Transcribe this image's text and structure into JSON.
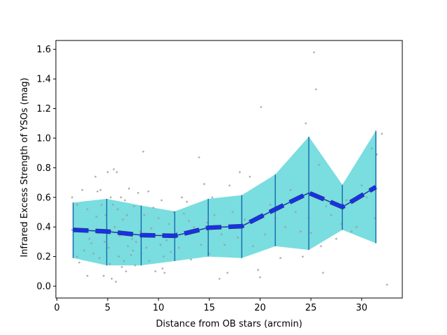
{
  "chart_data": {
    "type": "line",
    "xlabel": "Distance from OB stars (arcmin)",
    "ylabel": "Infrared Excess Strength of YSOs (mag)",
    "xlim": [
      -0.1,
      34.0
    ],
    "ylim": [
      -0.08,
      1.66
    ],
    "x_ticks": [
      0,
      5,
      10,
      15,
      20,
      25,
      30
    ],
    "y_ticks": [
      0.0,
      0.2,
      0.4,
      0.6,
      0.8,
      1.0,
      1.2,
      1.4,
      1.6
    ],
    "grid": false,
    "legend": "none",
    "colors": {
      "band": "#7adddf",
      "errorbar": "#1f77b4",
      "mean_line": "#1a2ff0",
      "mean_line_edge": "#1f3a8f",
      "scatter": "#999999"
    },
    "binned_series": {
      "x": [
        1.6,
        4.9,
        8.3,
        11.6,
        14.9,
        18.2,
        21.5,
        24.8,
        28.1,
        31.4
      ],
      "mean": [
        0.38,
        0.37,
        0.345,
        0.34,
        0.395,
        0.405,
        0.52,
        0.63,
        0.535,
        0.67
      ],
      "upper": [
        0.565,
        0.59,
        0.545,
        0.505,
        0.59,
        0.615,
        0.755,
        1.01,
        0.685,
        1.05
      ],
      "lower": [
        0.19,
        0.14,
        0.14,
        0.17,
        0.2,
        0.19,
        0.27,
        0.245,
        0.38,
        0.29
      ]
    },
    "scatter_points": [
      [
        1.5,
        0.6
      ],
      [
        1.5,
        0.38
      ],
      [
        2.0,
        0.55
      ],
      [
        2.0,
        0.2
      ],
      [
        2.2,
        0.16
      ],
      [
        2.5,
        0.65
      ],
      [
        2.7,
        0.24
      ],
      [
        3.0,
        0.52
      ],
      [
        3.0,
        0.07
      ],
      [
        3.2,
        0.32
      ],
      [
        3.4,
        0.29
      ],
      [
        3.6,
        0.22
      ],
      [
        3.8,
        0.74
      ],
      [
        3.9,
        0.47
      ],
      [
        4.0,
        0.64
      ],
      [
        4.1,
        0.36
      ],
      [
        4.2,
        0.19
      ],
      [
        4.3,
        0.65
      ],
      [
        4.4,
        0.55
      ],
      [
        4.6,
        0.07
      ],
      [
        4.7,
        0.3
      ],
      [
        4.8,
        0.48
      ],
      [
        5.0,
        0.77
      ],
      [
        5.1,
        0.26
      ],
      [
        5.2,
        0.15
      ],
      [
        5.3,
        0.6
      ],
      [
        5.4,
        0.05
      ],
      [
        5.5,
        0.55
      ],
      [
        5.6,
        0.79
      ],
      [
        5.7,
        0.4
      ],
      [
        5.8,
        0.03
      ],
      [
        5.9,
        0.77
      ],
      [
        6.0,
        0.52
      ],
      [
        6.1,
        0.2
      ],
      [
        6.2,
        0.34
      ],
      [
        6.3,
        0.6
      ],
      [
        6.4,
        0.13
      ],
      [
        6.5,
        0.45
      ],
      [
        6.6,
        0.17
      ],
      [
        6.7,
        0.58
      ],
      [
        6.8,
        0.1
      ],
      [
        6.9,
        0.48
      ],
      [
        7.0,
        0.27
      ],
      [
        7.1,
        0.66
      ],
      [
        7.2,
        0.36
      ],
      [
        7.3,
        0.21
      ],
      [
        7.4,
        0.32
      ],
      [
        7.5,
        0.24
      ],
      [
        7.6,
        0.54
      ],
      [
        7.7,
        0.14
      ],
      [
        7.8,
        0.3
      ],
      [
        8.0,
        0.63
      ],
      [
        8.2,
        0.37
      ],
      [
        8.3,
        0.22
      ],
      [
        8.5,
        0.91
      ],
      [
        8.6,
        0.48
      ],
      [
        8.8,
        0.26
      ],
      [
        9.0,
        0.64
      ],
      [
        9.1,
        0.17
      ],
      [
        9.3,
        0.39
      ],
      [
        9.5,
        0.53
      ],
      [
        9.7,
        0.1
      ],
      [
        10.0,
        0.46
      ],
      [
        10.2,
        0.28
      ],
      [
        10.3,
        0.58
      ],
      [
        10.4,
        0.12
      ],
      [
        10.5,
        0.2
      ],
      [
        10.6,
        0.09
      ],
      [
        10.8,
        0.31
      ],
      [
        11.0,
        0.42
      ],
      [
        11.2,
        0.23
      ],
      [
        11.5,
        0.5
      ],
      [
        11.8,
        0.36
      ],
      [
        12.0,
        0.26
      ],
      [
        12.3,
        0.6
      ],
      [
        12.5,
        0.49
      ],
      [
        12.8,
        0.57
      ],
      [
        13.0,
        0.44
      ],
      [
        13.2,
        0.18
      ],
      [
        13.5,
        0.4
      ],
      [
        14.0,
        0.87
      ],
      [
        14.2,
        0.28
      ],
      [
        14.5,
        0.69
      ],
      [
        14.8,
        0.43
      ],
      [
        15.0,
        0.22
      ],
      [
        15.3,
        0.6
      ],
      [
        15.5,
        0.48
      ],
      [
        16.0,
        0.05
      ],
      [
        16.2,
        0.35
      ],
      [
        16.5,
        0.28
      ],
      [
        16.8,
        0.09
      ],
      [
        17.0,
        0.68
      ],
      [
        17.3,
        0.5
      ],
      [
        17.8,
        0.33
      ],
      [
        18.0,
        0.77
      ],
      [
        18.5,
        0.45
      ],
      [
        19.0,
        0.74
      ],
      [
        19.3,
        0.27
      ],
      [
        19.8,
        0.11
      ],
      [
        20.0,
        0.06
      ],
      [
        20.1,
        1.21
      ],
      [
        20.5,
        0.35
      ],
      [
        21.0,
        0.55
      ],
      [
        21.5,
        0.46
      ],
      [
        22.0,
        0.19
      ],
      [
        22.5,
        0.4
      ],
      [
        23.0,
        0.65
      ],
      [
        23.5,
        0.5
      ],
      [
        24.0,
        0.37
      ],
      [
        24.2,
        0.2
      ],
      [
        24.5,
        1.1
      ],
      [
        24.8,
        0.46
      ],
      [
        25.0,
        0.36
      ],
      [
        25.3,
        1.58
      ],
      [
        25.5,
        1.33
      ],
      [
        25.8,
        0.82
      ],
      [
        26.0,
        0.27
      ],
      [
        26.2,
        0.09
      ],
      [
        26.5,
        0.54
      ],
      [
        27.0,
        0.48
      ],
      [
        27.5,
        0.32
      ],
      [
        28.0,
        0.42
      ],
      [
        28.5,
        0.58
      ],
      [
        29.0,
        0.37
      ],
      [
        29.5,
        0.4
      ],
      [
        30.0,
        0.68
      ],
      [
        30.5,
        0.6
      ],
      [
        31.0,
        0.93
      ],
      [
        31.3,
        0.46
      ],
      [
        31.5,
        0.89
      ],
      [
        32.0,
        1.03
      ],
      [
        32.5,
        0.01
      ]
    ]
  }
}
